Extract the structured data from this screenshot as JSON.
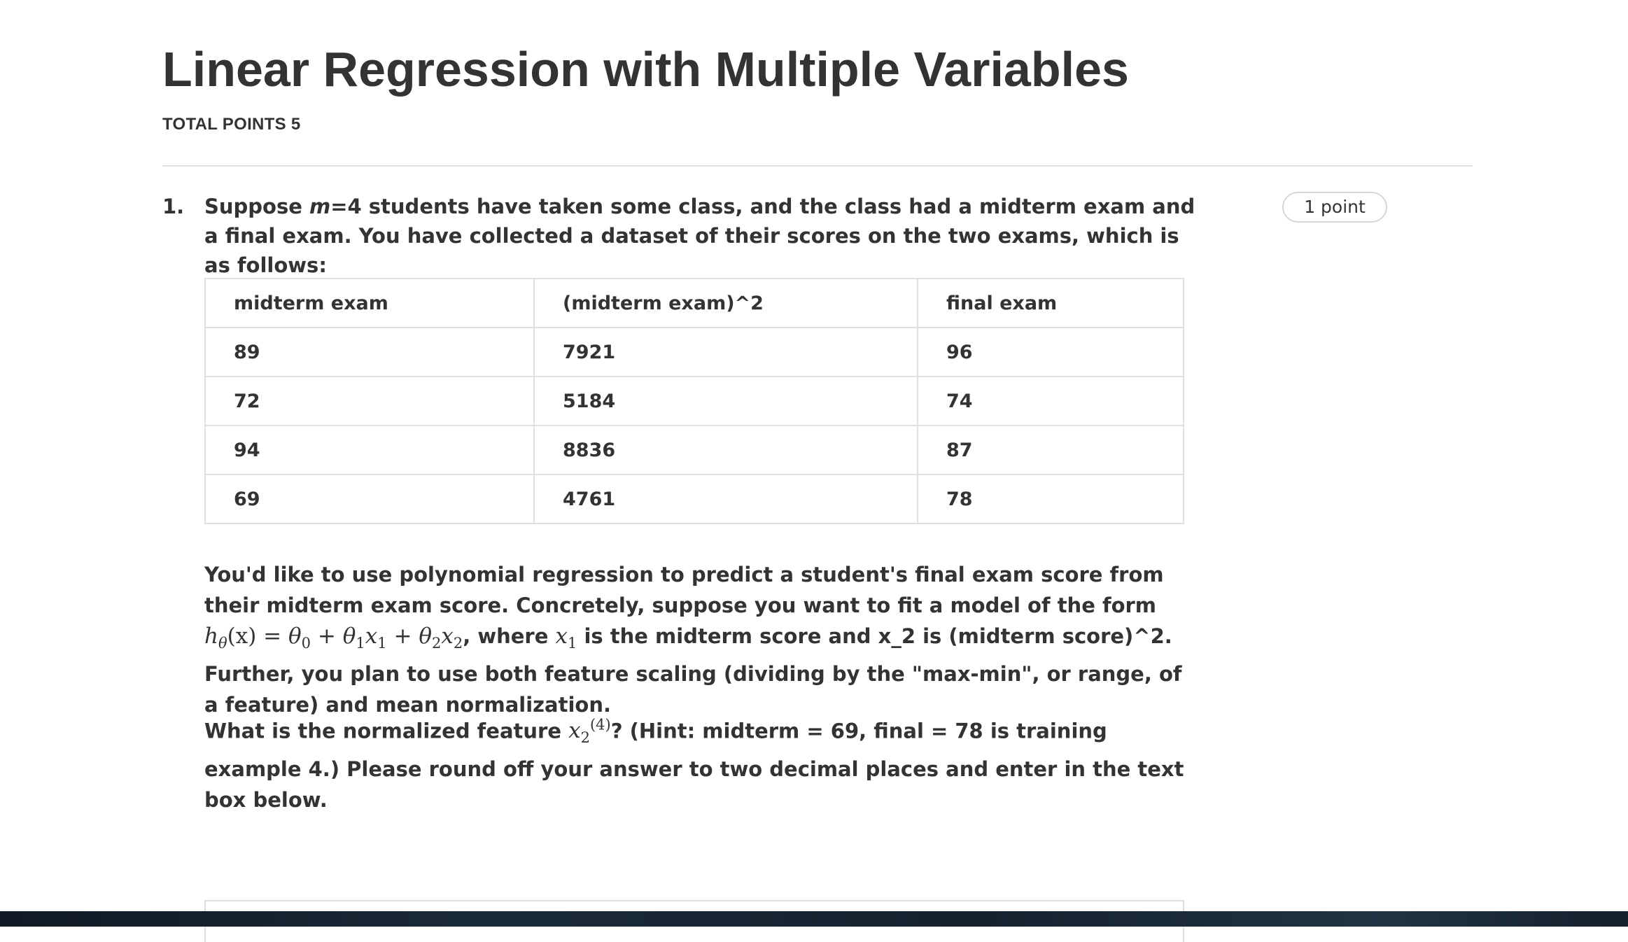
{
  "page": {
    "title": "Linear Regression with Multiple Variables",
    "total_points": "TOTAL POINTS 5"
  },
  "question": {
    "number": "1.",
    "points_badge": "1 point",
    "intro_1": "Suppose ",
    "intro_m": "m",
    "intro_2": "=4 students have taken some class, and the class had a midterm exam and a final exam. You have collected a dataset of their scores on the two exams, which is as follows:",
    "table": {
      "headers": [
        "midterm exam",
        "(midterm exam)^2",
        "final exam"
      ],
      "rows": [
        [
          "89",
          "7921",
          "96"
        ],
        [
          "72",
          "5184",
          "74"
        ],
        [
          "94",
          "8836",
          "87"
        ],
        [
          "69",
          "4761",
          "78"
        ]
      ]
    },
    "para2": {
      "text_a": "You'd like to use polynomial regression to predict a student's final exam score from their midterm exam score. Concretely, suppose you want to fit a model of the form ",
      "formula": {
        "h": "h",
        "theta": "θ",
        "paren_x": "(x) = ",
        "t0": "θ",
        "sub0": "0",
        "plus1": " + ",
        "t1": "θ",
        "sub1": "1",
        "x1": "x",
        "subx1": "1",
        "plus2": " + ",
        "t2": "θ",
        "sub2": "2",
        "x2": "x",
        "subx2": "2"
      },
      "text_b": ", where ",
      "where_x": "x",
      "where_sub": "1",
      "text_c": " is the midterm score and x_2 is (midterm score)^2. Further, you plan to use both feature scaling (dividing by the \"max-min\", or range, of a feature) and mean normalization."
    },
    "para3": {
      "text_a": "What is the normalized feature ",
      "feat_x": "x",
      "feat_sub": "2",
      "feat_sup": "(4)",
      "text_b": "? (Hint: midterm = 69, final = 78 is training example 4.) Please round off your answer to two decimal places and enter in the text box below."
    }
  }
}
